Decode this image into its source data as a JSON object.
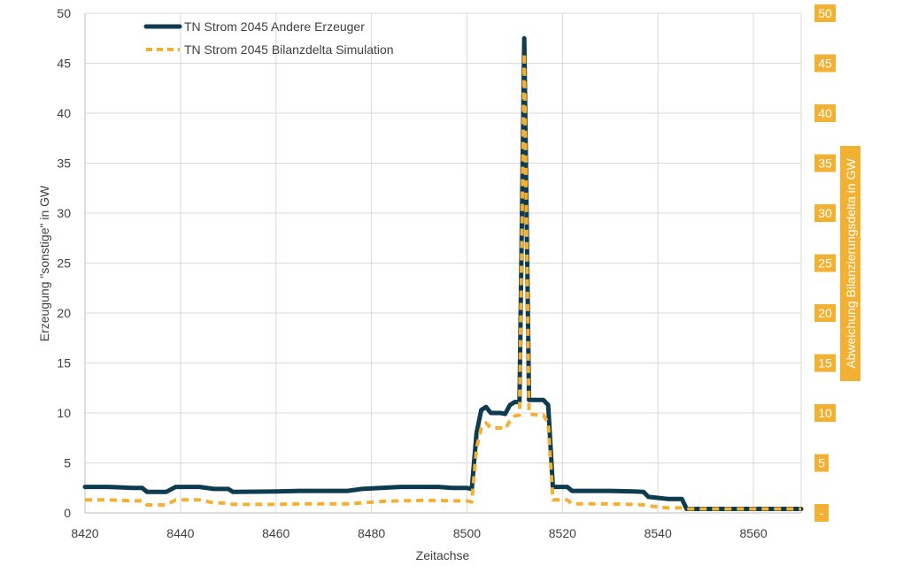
{
  "chart_data": {
    "type": "line",
    "xlabel": "Zeitachse",
    "ylabel": "Erzeugung \"sonstige\" in GW",
    "y2label": "Abweichung Bilanzierungsdelta in GW",
    "xlim": [
      8420,
      8570
    ],
    "ylim": [
      0,
      50
    ],
    "y2lim": [
      0,
      50
    ],
    "x_ticks": [
      8420,
      8440,
      8460,
      8480,
      8500,
      8520,
      8540,
      8560
    ],
    "y_ticks": [
      0,
      5,
      10,
      15,
      20,
      25,
      30,
      35,
      40,
      45,
      50
    ],
    "y2_tick_labels": [
      "-",
      "5",
      "10",
      "15",
      "20",
      "25",
      "30",
      "35",
      "40",
      "45",
      "50"
    ],
    "grid": true,
    "legend_position": "top-left",
    "colors": {
      "series1": "#0d3b4f",
      "series2": "#f2b132",
      "grid": "#d9d9d9",
      "axis2_fill": "#f2b132"
    },
    "series": [
      {
        "name": "TN Strom 2045 Andere Erzeuger",
        "style": "solid",
        "points": [
          [
            8420,
            2.6
          ],
          [
            8425,
            2.6
          ],
          [
            8430,
            2.5
          ],
          [
            8432,
            2.5
          ],
          [
            8433,
            2.1
          ],
          [
            8437,
            2.1
          ],
          [
            8439,
            2.6
          ],
          [
            8444,
            2.6
          ],
          [
            8447,
            2.4
          ],
          [
            8450,
            2.4
          ],
          [
            8451,
            2.1
          ],
          [
            8460,
            2.15
          ],
          [
            8465,
            2.2
          ],
          [
            8470,
            2.2
          ],
          [
            8475,
            2.2
          ],
          [
            8478,
            2.4
          ],
          [
            8482,
            2.5
          ],
          [
            8486,
            2.6
          ],
          [
            8490,
            2.6
          ],
          [
            8494,
            2.6
          ],
          [
            8497,
            2.5
          ],
          [
            8500,
            2.5
          ],
          [
            8501,
            2.4
          ],
          [
            8502,
            8.0
          ],
          [
            8503,
            10.3
          ],
          [
            8504,
            10.6
          ],
          [
            8505,
            10.0
          ],
          [
            8507,
            10.0
          ],
          [
            8508,
            9.9
          ],
          [
            8509,
            10.8
          ],
          [
            8510,
            11.1
          ],
          [
            8511,
            11.1
          ],
          [
            8512,
            47.5
          ],
          [
            8513,
            11.3
          ],
          [
            8515,
            11.3
          ],
          [
            8516,
            11.3
          ],
          [
            8517,
            10.8
          ],
          [
            8518,
            2.6
          ],
          [
            8520,
            2.6
          ],
          [
            8521,
            2.6
          ],
          [
            8522,
            2.2
          ],
          [
            8525,
            2.2
          ],
          [
            8530,
            2.2
          ],
          [
            8535,
            2.15
          ],
          [
            8537,
            2.1
          ],
          [
            8538,
            1.6
          ],
          [
            8540,
            1.5
          ],
          [
            8542,
            1.4
          ],
          [
            8545,
            1.4
          ],
          [
            8546,
            0.4
          ],
          [
            8550,
            0.4
          ],
          [
            8560,
            0.4
          ],
          [
            8570,
            0.4
          ]
        ]
      },
      {
        "name": "TN Strom 2045 Bilanzdelta Simulation",
        "style": "dashed",
        "points": [
          [
            8420,
            1.3
          ],
          [
            8425,
            1.3
          ],
          [
            8430,
            1.2
          ],
          [
            8432,
            1.2
          ],
          [
            8433,
            0.8
          ],
          [
            8437,
            0.8
          ],
          [
            8439,
            1.3
          ],
          [
            8444,
            1.3
          ],
          [
            8447,
            1.0
          ],
          [
            8450,
            1.0
          ],
          [
            8451,
            0.85
          ],
          [
            8460,
            0.85
          ],
          [
            8465,
            0.9
          ],
          [
            8470,
            0.9
          ],
          [
            8475,
            0.9
          ],
          [
            8478,
            1.0
          ],
          [
            8482,
            1.15
          ],
          [
            8486,
            1.2
          ],
          [
            8490,
            1.25
          ],
          [
            8494,
            1.25
          ],
          [
            8497,
            1.2
          ],
          [
            8500,
            1.2
          ],
          [
            8501,
            1.1
          ],
          [
            8502,
            6.5
          ],
          [
            8503,
            8.5
          ],
          [
            8504,
            9.0
          ],
          [
            8505,
            8.5
          ],
          [
            8507,
            8.5
          ],
          [
            8508,
            8.4
          ],
          [
            8509,
            9.2
          ],
          [
            8510,
            9.7
          ],
          [
            8511,
            9.8
          ],
          [
            8512,
            46.0
          ],
          [
            8513,
            9.9
          ],
          [
            8515,
            9.8
          ],
          [
            8516,
            9.8
          ],
          [
            8517,
            9.0
          ],
          [
            8518,
            1.3
          ],
          [
            8520,
            1.3
          ],
          [
            8521,
            1.3
          ],
          [
            8522,
            0.9
          ],
          [
            8525,
            0.9
          ],
          [
            8530,
            0.9
          ],
          [
            8535,
            0.85
          ],
          [
            8537,
            0.8
          ],
          [
            8538,
            0.7
          ],
          [
            8540,
            0.6
          ],
          [
            8542,
            0.5
          ],
          [
            8545,
            0.5
          ],
          [
            8546,
            0.4
          ],
          [
            8550,
            0.4
          ],
          [
            8560,
            0.4
          ],
          [
            8570,
            0.4
          ]
        ]
      }
    ]
  }
}
